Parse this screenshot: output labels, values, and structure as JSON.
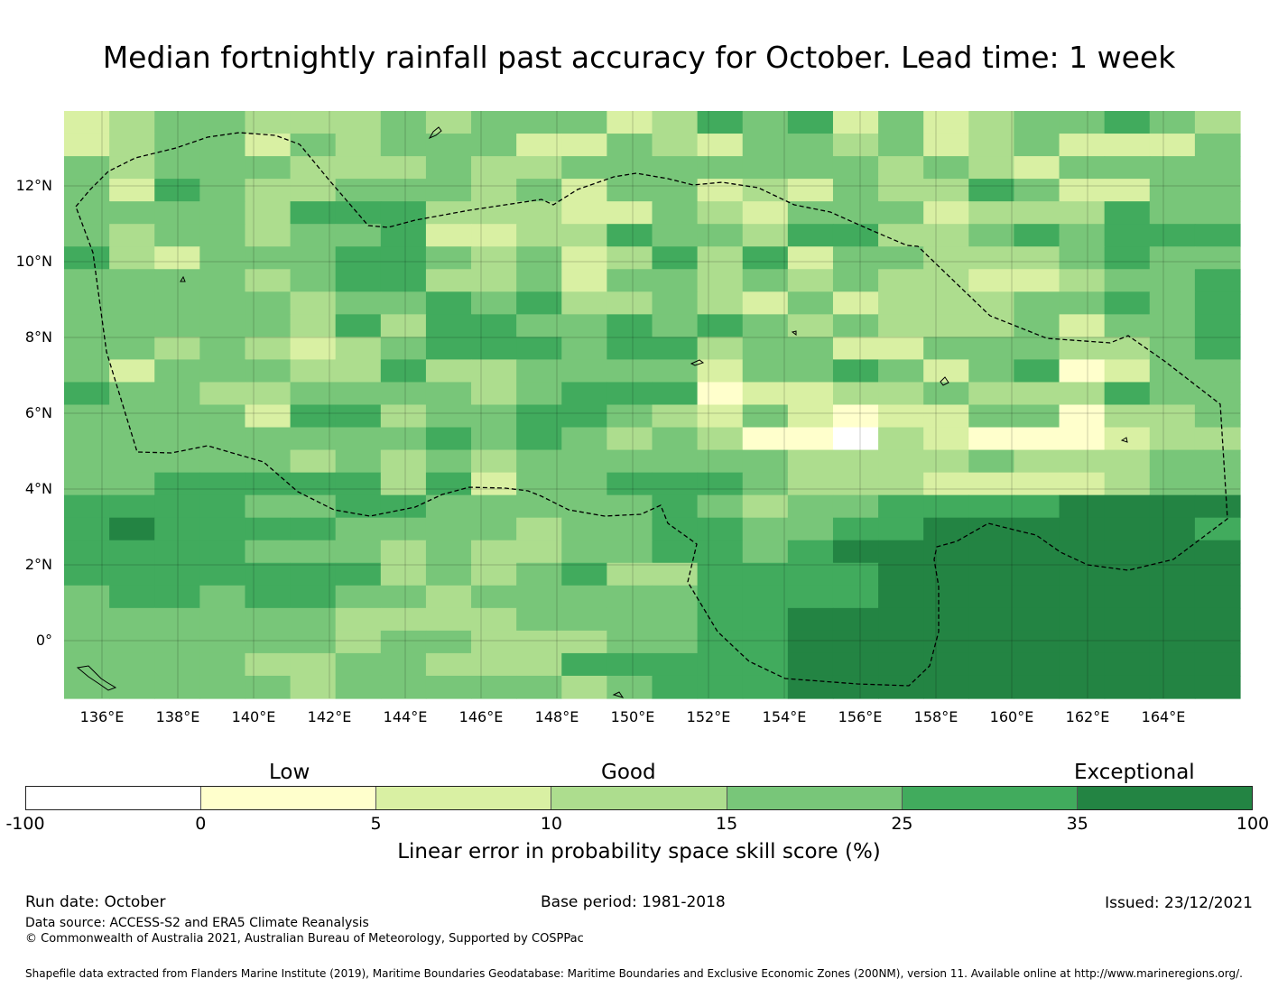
{
  "title": "Median fortnightly rainfall past accuracy for October. Lead time: 1 week",
  "map": {
    "lat_labels": [
      "12°N",
      "10°N",
      "8°N",
      "6°N",
      "4°N",
      "2°N",
      "0°"
    ],
    "lon_labels": [
      "136°E",
      "138°E",
      "140°E",
      "142°E",
      "144°E",
      "146°E",
      "148°E",
      "150°E",
      "152°E",
      "154°E",
      "156°E",
      "158°E",
      "160°E",
      "162°E",
      "164°E"
    ],
    "grid_rows": [
      "23443334344423545242344543",
      "23442434442243244342342224",
      "43444333433444444434324444",
      "42543344434244232433542244",
      "44443555333224324442333544",
      "43443445223354435533454555",
      "53244455434235352443334544",
      "44443455334244343433223445",
      "44444344545334324233344545",
      "44444353554454543433342445",
      "44343234555455344224443345",
      "42444335334444244542451244",
      "54433444434555122334333544",
      "44442553445543242122441334",
      "44444444545434311032111233",
      "44444343434444443333433344",
      "44555553524455543332222344",
      "55554455444445434455556666",
      "56555544443445544556666665",
      "55554443433445545666666666",
      "55555553434533555566666666",
      "45545544344444555566666666",
      "44444433334444556666666666",
      "44444434433344556666666666",
      "44443344333555556666666666",
      "44444344444345556666666666"
    ]
  },
  "colorbar": {
    "categories": [
      "Low",
      "Good",
      "Exceptional"
    ],
    "colors": [
      "#ffffff",
      "#ffffcc",
      "#d9f0a3",
      "#addd8e",
      "#78c679",
      "#41ab5d",
      "#238443"
    ],
    "ticks": [
      "-100",
      "0",
      "5",
      "10",
      "15",
      "25",
      "35",
      "100"
    ],
    "label": "Linear error in probability space skill score (%)"
  },
  "footer": {
    "run_date": "Run date: October",
    "base_period": "Base period: 1981-2018",
    "issued": "Issued: 23/12/2021",
    "data_source": "Data source: ACCESS-S2 and ERA5 Climate Reanalysis",
    "copyright": "© Commonwealth of Australia 2021, Australian Bureau of Meteorology, Supported by COSPPac",
    "shapefile": "Shapefile data extracted from Flanders Marine Institute (2019), Maritime Boundaries Geodatabase: Maritime Boundaries and Exclusive Economic Zones (200NM), version 11. Available online at http://www.marineregions.org/."
  }
}
